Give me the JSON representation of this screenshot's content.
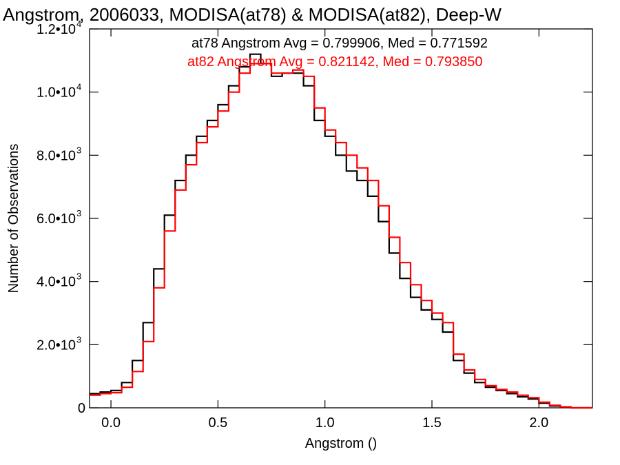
{
  "chart_data": {
    "type": "line",
    "title": "Angstrom, 2006033, MODISA(at78) & MODISA(at82), Deep-W",
    "xlabel": "Angstrom ()",
    "ylabel": "Number of Observations",
    "xlim": [
      -0.1,
      2.25
    ],
    "ylim": [
      0,
      12000
    ],
    "x_ticks": [
      {
        "value": 0.0,
        "label": "0.0"
      },
      {
        "value": 0.5,
        "label": "0.5"
      },
      {
        "value": 1.0,
        "label": "1.0"
      },
      {
        "value": 1.5,
        "label": "1.5"
      },
      {
        "value": 2.0,
        "label": "2.0"
      }
    ],
    "y_ticks": [
      {
        "value": 0,
        "label": "0",
        "exp": ""
      },
      {
        "value": 2000,
        "label": "2.0•10",
        "exp": "3"
      },
      {
        "value": 4000,
        "label": "4.0•10",
        "exp": "3"
      },
      {
        "value": 6000,
        "label": "6.0•10",
        "exp": "3"
      },
      {
        "value": 8000,
        "label": "8.0•10",
        "exp": "3"
      },
      {
        "value": 10000,
        "label": "1.0•10",
        "exp": "4"
      },
      {
        "value": 12000,
        "label": "1.2•10",
        "exp": "4"
      }
    ],
    "annotations": [
      {
        "text": "at78 Angstrom Avg = 0.799906, Med = 0.771592",
        "color": "#000000"
      },
      {
        "text": "at82 Angstrom Avg = 0.821142, Med = 0.793850",
        "color": "#ff0000"
      }
    ],
    "grid": false,
    "series": [
      {
        "color": "#000000",
        "x": [
          -0.1,
          -0.05,
          0.0,
          0.05,
          0.1,
          0.15,
          0.2,
          0.25,
          0.3,
          0.35,
          0.4,
          0.45,
          0.5,
          0.55,
          0.6,
          0.65,
          0.7,
          0.75,
          0.8,
          0.85,
          0.9,
          0.95,
          1.0,
          1.05,
          1.1,
          1.15,
          1.2,
          1.25,
          1.3,
          1.35,
          1.4,
          1.45,
          1.5,
          1.55,
          1.6,
          1.65,
          1.7,
          1.75,
          1.8,
          1.85,
          1.9,
          1.95,
          2.0,
          2.05,
          2.1,
          2.15
        ],
        "values": [
          450,
          500,
          550,
          800,
          1500,
          2700,
          4400,
          6100,
          7200,
          8000,
          8600,
          9100,
          9600,
          10200,
          10800,
          11200,
          10900,
          10500,
          10600,
          10600,
          10200,
          9100,
          8600,
          8000,
          7500,
          7200,
          6700,
          5900,
          4900,
          4100,
          3500,
          3100,
          2800,
          2400,
          1500,
          1100,
          800,
          650,
          550,
          450,
          350,
          280,
          150,
          60,
          20,
          0
        ]
      },
      {
        "color": "#ff0000",
        "x": [
          -0.1,
          -0.05,
          0.0,
          0.05,
          0.1,
          0.15,
          0.2,
          0.25,
          0.3,
          0.35,
          0.4,
          0.45,
          0.5,
          0.55,
          0.6,
          0.65,
          0.7,
          0.75,
          0.8,
          0.85,
          0.9,
          0.95,
          1.0,
          1.05,
          1.1,
          1.15,
          1.2,
          1.25,
          1.3,
          1.35,
          1.4,
          1.45,
          1.5,
          1.55,
          1.6,
          1.65,
          1.7,
          1.75,
          1.8,
          1.85,
          1.9,
          1.95,
          2.0,
          2.05,
          2.1,
          2.15
        ],
        "values": [
          400,
          450,
          480,
          650,
          1150,
          2100,
          3800,
          5600,
          6900,
          7700,
          8400,
          8900,
          9400,
          10000,
          10600,
          10900,
          10900,
          10600,
          10600,
          10700,
          10500,
          9500,
          8800,
          8400,
          8000,
          7600,
          7200,
          6400,
          5400,
          4600,
          3900,
          3400,
          3000,
          2700,
          1700,
          1200,
          900,
          700,
          580,
          500,
          400,
          320,
          180,
          80,
          30,
          0
        ]
      }
    ]
  }
}
